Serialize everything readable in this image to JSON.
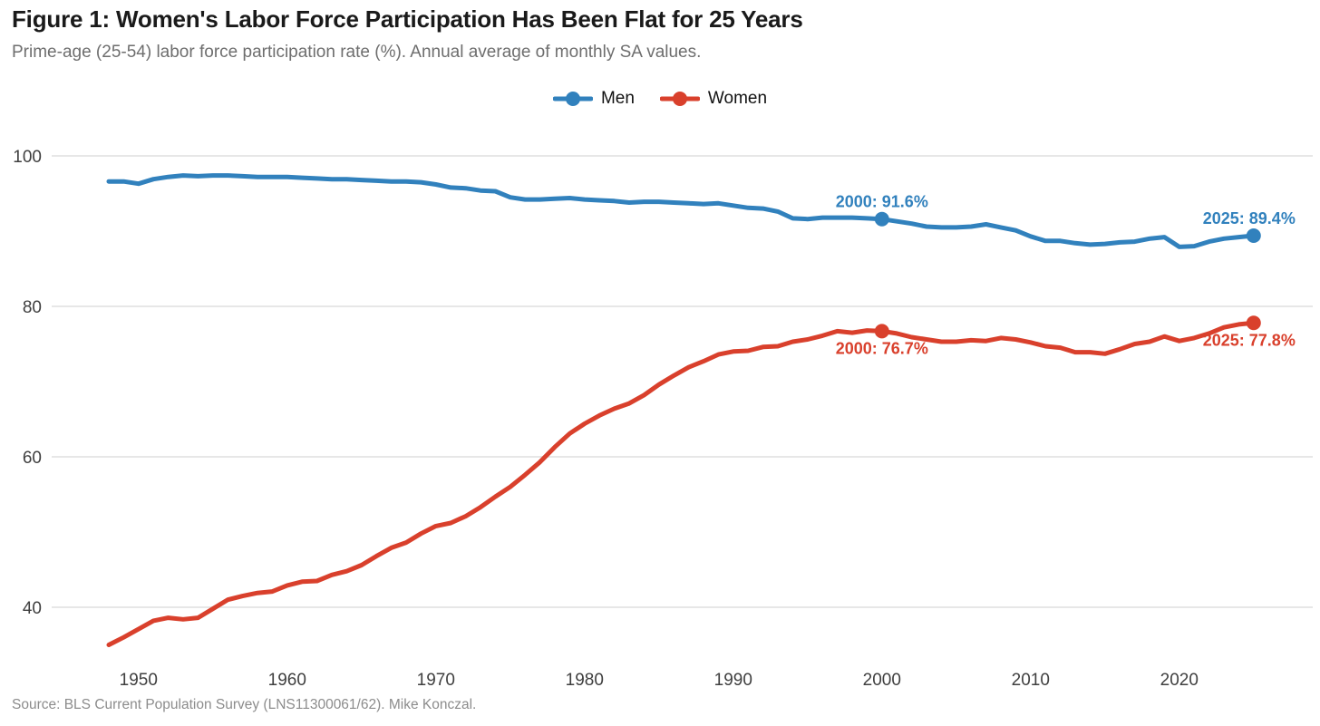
{
  "figure": {
    "title": "Figure 1: Women's Labor Force Participation Has Been Flat for 25 Years",
    "subtitle": "Prime-age (25-54) labor force participation rate (%). Annual average of monthly SA values.",
    "source": "Source: BLS Current Population Survey (LNS11300061/62). Mike Konczal."
  },
  "colors": {
    "men": "#3181bd",
    "women": "#d9402c",
    "grid": "#e7e7e7",
    "tick": "#3f3f3f",
    "title": "#1a1a1a",
    "subtitle": "#6e6e6e",
    "source": "#8c8c8c"
  },
  "legend": {
    "items": [
      {
        "label": "Men",
        "color": "#3181bd"
      },
      {
        "label": "Women",
        "color": "#d9402c"
      }
    ]
  },
  "chart_data": {
    "type": "line",
    "title": "Figure 1: Women's Labor Force Participation Has Been Flat for 25 Years",
    "subtitle": "Prime-age (25-54) labor force participation rate (%). Annual average of monthly SA values.",
    "xlabel": "",
    "ylabel": "",
    "grid": "horizontal",
    "legend_position": "top-center",
    "ylim": [
      33,
      102
    ],
    "yticks": [
      40,
      60,
      80,
      100
    ],
    "xticks": [
      1950,
      1960,
      1970,
      1980,
      1990,
      2000,
      2010,
      2020
    ],
    "x": [
      1948,
      1949,
      1950,
      1951,
      1952,
      1953,
      1954,
      1955,
      1956,
      1957,
      1958,
      1959,
      1960,
      1961,
      1962,
      1963,
      1964,
      1965,
      1966,
      1967,
      1968,
      1969,
      1970,
      1971,
      1972,
      1973,
      1974,
      1975,
      1976,
      1977,
      1978,
      1979,
      1980,
      1981,
      1982,
      1983,
      1984,
      1985,
      1986,
      1987,
      1988,
      1989,
      1990,
      1991,
      1992,
      1993,
      1994,
      1995,
      1996,
      1997,
      1998,
      1999,
      2000,
      2001,
      2002,
      2003,
      2004,
      2005,
      2006,
      2007,
      2008,
      2009,
      2010,
      2011,
      2012,
      2013,
      2014,
      2015,
      2016,
      2017,
      2018,
      2019,
      2020,
      2021,
      2022,
      2023,
      2024,
      2025
    ],
    "series": [
      {
        "name": "Men",
        "color": "#3181bd",
        "values": [
          96.6,
          96.6,
          96.3,
          96.9,
          97.2,
          97.4,
          97.3,
          97.4,
          97.4,
          97.3,
          97.2,
          97.2,
          97.2,
          97.1,
          97.0,
          96.9,
          96.9,
          96.8,
          96.7,
          96.6,
          96.6,
          96.5,
          96.2,
          95.8,
          95.7,
          95.4,
          95.3,
          94.5,
          94.2,
          94.2,
          94.3,
          94.4,
          94.2,
          94.1,
          94.0,
          93.8,
          93.9,
          93.9,
          93.8,
          93.7,
          93.6,
          93.7,
          93.4,
          93.1,
          93.0,
          92.6,
          91.7,
          91.6,
          91.8,
          91.8,
          91.8,
          91.7,
          91.6,
          91.3,
          91.0,
          90.6,
          90.5,
          90.5,
          90.6,
          90.9,
          90.5,
          90.1,
          89.3,
          88.7,
          88.7,
          88.4,
          88.2,
          88.3,
          88.5,
          88.6,
          89.0,
          89.2,
          87.9,
          88.0,
          88.6,
          89.0,
          89.2,
          89.4
        ]
      },
      {
        "name": "Women",
        "color": "#d9402c",
        "values": [
          35.0,
          36.0,
          37.1,
          38.2,
          38.6,
          38.4,
          38.6,
          39.8,
          41.0,
          41.5,
          41.9,
          42.1,
          42.9,
          43.4,
          43.5,
          44.3,
          44.8,
          45.6,
          46.8,
          47.9,
          48.6,
          49.8,
          50.8,
          51.2,
          52.1,
          53.3,
          54.7,
          56.0,
          57.6,
          59.3,
          61.3,
          63.1,
          64.4,
          65.5,
          66.4,
          67.1,
          68.2,
          69.6,
          70.8,
          71.9,
          72.7,
          73.6,
          74.0,
          74.1,
          74.6,
          74.7,
          75.3,
          75.6,
          76.1,
          76.7,
          76.5,
          76.8,
          76.7,
          76.4,
          75.9,
          75.6,
          75.3,
          75.3,
          75.5,
          75.4,
          75.8,
          75.6,
          75.2,
          74.7,
          74.5,
          73.9,
          73.9,
          73.7,
          74.3,
          75.0,
          75.3,
          76.0,
          75.4,
          75.8,
          76.4,
          77.2,
          77.6,
          77.8
        ]
      }
    ],
    "annotations": [
      {
        "series": "Men",
        "year": 2000,
        "value": 91.6,
        "label": "2000: 91.6%",
        "placement": "above"
      },
      {
        "series": "Men",
        "year": 2025,
        "value": 89.4,
        "label": "2025: 89.4%",
        "placement": "above"
      },
      {
        "series": "Women",
        "year": 2000,
        "value": 76.7,
        "label": "2000: 76.7%",
        "placement": "below"
      },
      {
        "series": "Women",
        "year": 2025,
        "value": 77.8,
        "label": "2025: 77.8%",
        "placement": "below"
      }
    ]
  }
}
